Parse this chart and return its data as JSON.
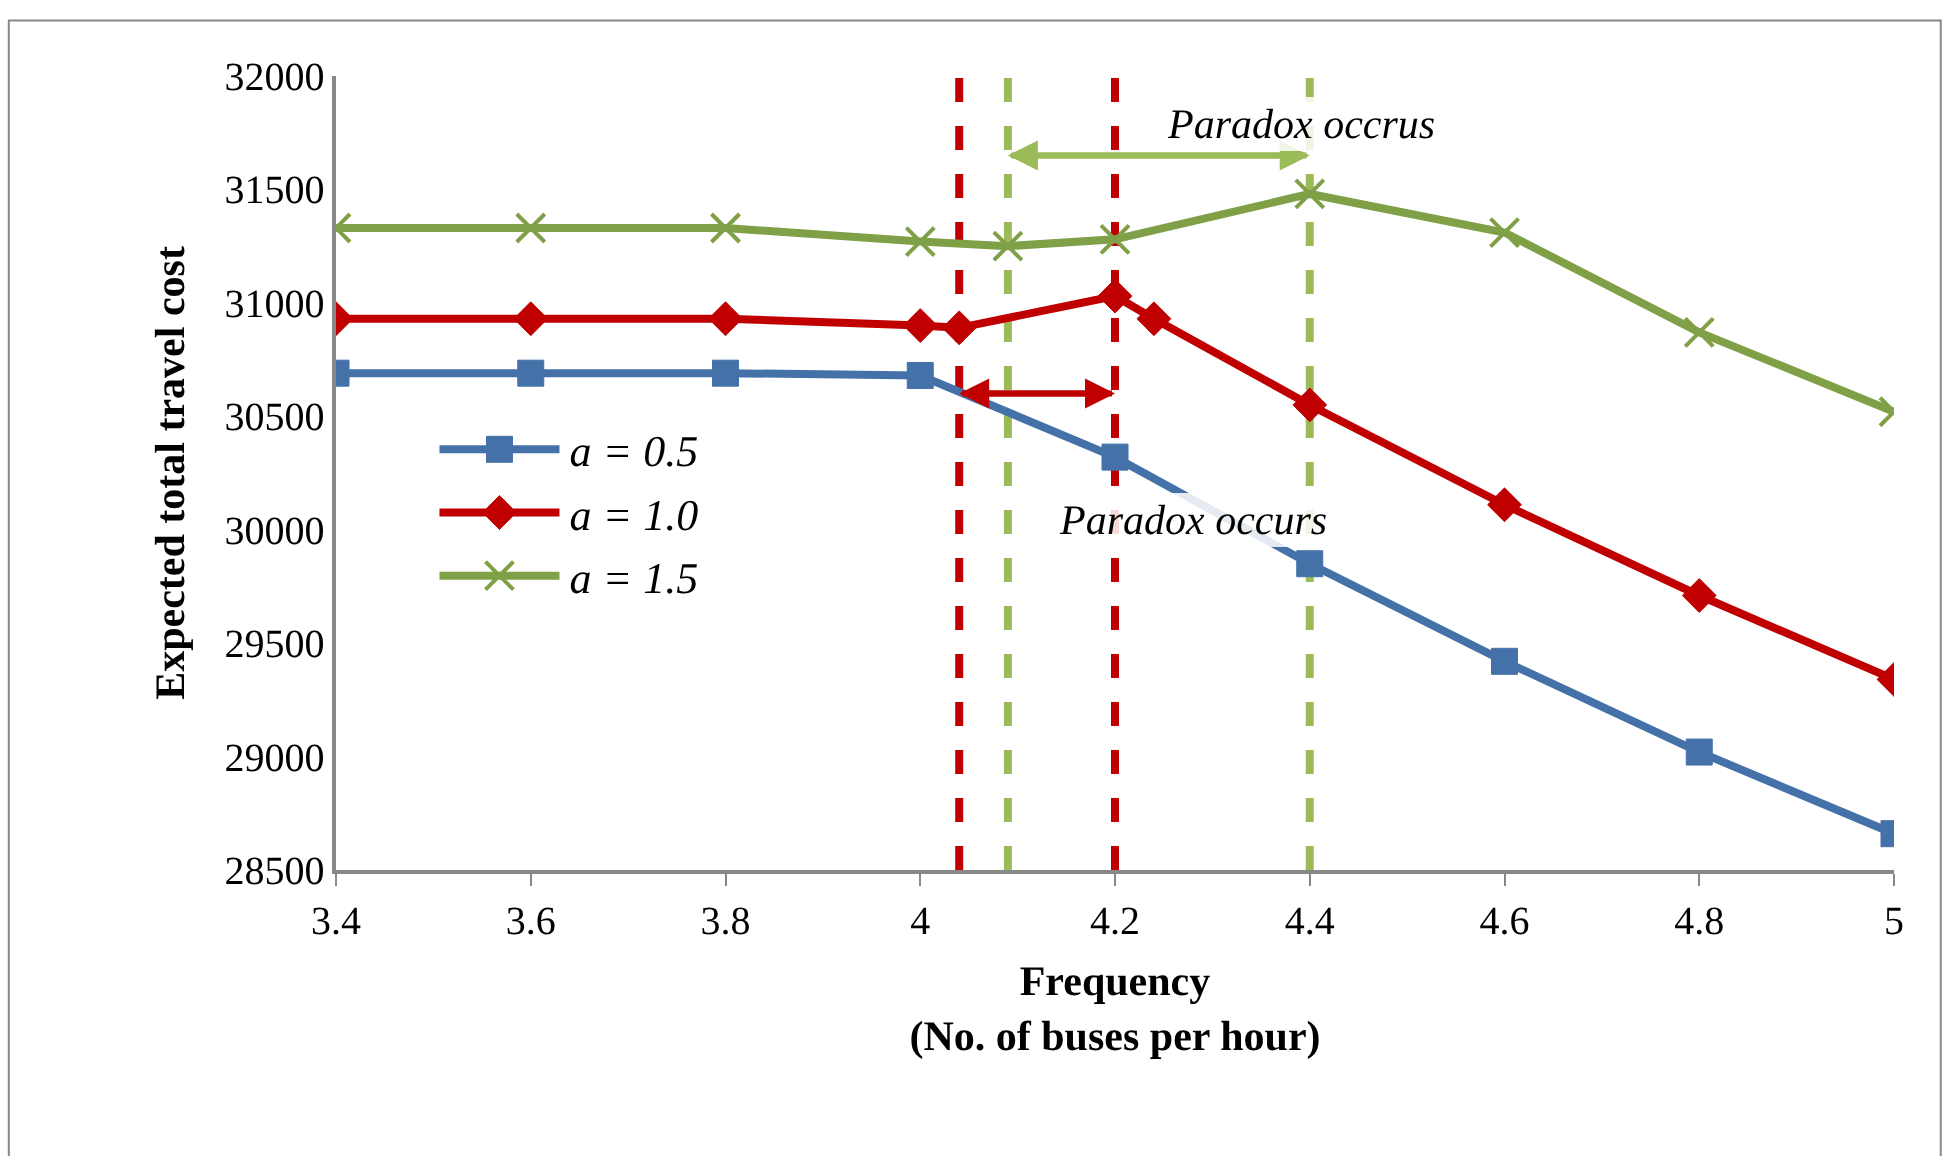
{
  "chart_data": {
    "type": "line",
    "xlabel": "Frequency\n(No. of buses per hour)",
    "ylabel": "Expected total travel cost",
    "xlim": [
      3.4,
      5
    ],
    "xticks": [
      3.4,
      3.6,
      3.8,
      4,
      4.2,
      4.4,
      4.6,
      4.8,
      5
    ],
    "ylim": [
      28500,
      32000
    ],
    "yticks": [
      28500,
      29000,
      29500,
      30000,
      30500,
      31000,
      31500,
      32000
    ],
    "grid": false,
    "legend": "left",
    "line_style": "solid",
    "series": [
      {
        "name": "a = 0.5",
        "color": "#4472a8",
        "marker": "square",
        "x": [
          3.4,
          3.6,
          3.8,
          4.0,
          4.2,
          4.4,
          4.6,
          4.8,
          5.0
        ],
        "values": [
          30690,
          30690,
          30690,
          30680,
          30320,
          29850,
          29420,
          29020,
          28660
        ]
      },
      {
        "name": "a = 1.0",
        "color": "#c00000",
        "marker": "diamond",
        "x": [
          3.4,
          3.6,
          3.8,
          4.0,
          4.04,
          4.2,
          4.24,
          4.4,
          4.6,
          4.8,
          5.0
        ],
        "values": [
          30930,
          30930,
          30930,
          30900,
          30890,
          31030,
          30930,
          30550,
          30110,
          29710,
          29340
        ]
      },
      {
        "name": "a = 1.5",
        "color": "#7fa046",
        "marker": "cross",
        "x": [
          3.4,
          3.6,
          3.8,
          4.0,
          4.09,
          4.2,
          4.4,
          4.6,
          4.8,
          5.0
        ],
        "values": [
          31330,
          31330,
          31330,
          31270,
          31250,
          31280,
          31480,
          31310,
          30870,
          30520
        ]
      }
    ],
    "ref_lines": [
      {
        "axis": "x",
        "value": 4.04,
        "color": "#c00000",
        "line_style": "dashed"
      },
      {
        "axis": "x",
        "value": 4.2,
        "color": "#c00000",
        "line_style": "dashed"
      },
      {
        "axis": "x",
        "value": 4.09,
        "color": "#9bbb59",
        "line_style": "dashed"
      },
      {
        "axis": "x",
        "value": 4.4,
        "color": "#9bbb59",
        "line_style": "dashed"
      }
    ],
    "annotations": [
      "Paradox occurs",
      {
        "text": "Paradox occrus",
        "x": 4.4,
        "y": 31650
      }
    ]
  }
}
